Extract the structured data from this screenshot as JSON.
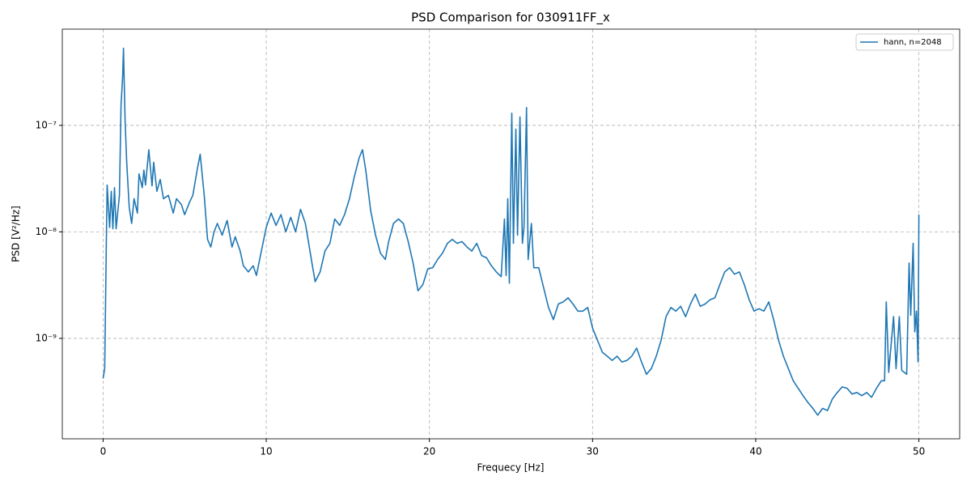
{
  "chart_data": {
    "type": "line",
    "title": "PSD Comparison for 030911FF_x",
    "x_label": "Frequecy [Hz]",
    "y_label": "PSD [V²/Hz]",
    "x": [
      0,
      0.1,
      0.2,
      0.25,
      0.4,
      0.5,
      0.6,
      0.7,
      0.8,
      1.0,
      1.1,
      1.2,
      1.25,
      1.35,
      1.45,
      1.6,
      1.75,
      1.9,
      2.1,
      2.2,
      2.4,
      2.5,
      2.6,
      2.8,
      3.0,
      3.1,
      3.3,
      3.5,
      3.7,
      4.0,
      4.3,
      4.5,
      4.8,
      5.0,
      5.3,
      5.5,
      5.8,
      5.95,
      6.2,
      6.4,
      6.6,
      6.8,
      7.0,
      7.3,
      7.6,
      7.9,
      8.1,
      8.4,
      8.6,
      8.9,
      9.2,
      9.4,
      9.7,
      10.0,
      10.3,
      10.6,
      10.9,
      11.2,
      11.5,
      11.8,
      12.1,
      12.4,
      12.6,
      12.8,
      13.0,
      13.3,
      13.6,
      13.9,
      14.2,
      14.5,
      14.8,
      15.1,
      15.4,
      15.7,
      15.9,
      16.1,
      16.4,
      16.7,
      17.0,
      17.3,
      17.5,
      17.8,
      18.1,
      18.4,
      18.7,
      19.0,
      19.3,
      19.6,
      19.9,
      20.2,
      20.5,
      20.8,
      21.1,
      21.4,
      21.7,
      22.0,
      22.3,
      22.6,
      22.9,
      23.2,
      23.5,
      23.8,
      24.1,
      24.4,
      24.6,
      24.7,
      24.8,
      24.9,
      25.05,
      25.15,
      25.3,
      25.4,
      25.55,
      25.7,
      25.8,
      25.95,
      26.05,
      26.25,
      26.4,
      26.7,
      27.0,
      27.3,
      27.6,
      27.9,
      28.2,
      28.5,
      28.8,
      29.1,
      29.4,
      29.7,
      30.0,
      30.3,
      30.6,
      30.9,
      31.2,
      31.5,
      31.8,
      32.1,
      32.4,
      32.7,
      33.0,
      33.3,
      33.6,
      33.9,
      34.2,
      34.5,
      34.8,
      35.1,
      35.4,
      35.7,
      36.0,
      36.3,
      36.6,
      36.9,
      37.2,
      37.5,
      37.8,
      38.1,
      38.4,
      38.7,
      39.0,
      39.3,
      39.6,
      39.9,
      40.2,
      40.5,
      40.8,
      41.1,
      41.4,
      41.7,
      42.0,
      42.3,
      42.6,
      42.9,
      43.2,
      43.5,
      43.8,
      44.1,
      44.4,
      44.7,
      45.0,
      45.3,
      45.6,
      45.9,
      46.2,
      46.5,
      46.8,
      47.1,
      47.4,
      47.7,
      47.9,
      48.0,
      48.15,
      48.45,
      48.6,
      48.8,
      48.95,
      49.25,
      49.4,
      49.5,
      49.65,
      49.75,
      49.85,
      49.95,
      50.0
    ],
    "series": [
      {
        "name": "hann, n=2048",
        "color": "#1f77b4",
        "values": [
          4.2e-10,
          5.2e-10,
          7.8e-09,
          2.75e-08,
          1.1e-08,
          2.4e-08,
          1.07e-08,
          2.6e-08,
          1.07e-08,
          2.2e-08,
          1.55e-07,
          2.9e-07,
          5.3e-07,
          1.1e-07,
          4.5e-08,
          1.7e-08,
          1.2e-08,
          2.05e-08,
          1.5e-08,
          3.5e-08,
          2.6e-08,
          3.8e-08,
          2.75e-08,
          5.9e-08,
          2.7e-08,
          4.5e-08,
          2.4e-08,
          3.1e-08,
          2.05e-08,
          2.2e-08,
          1.5e-08,
          2.05e-08,
          1.8e-08,
          1.45e-08,
          1.9e-08,
          2.2e-08,
          4.1e-08,
          5.35e-08,
          2.2e-08,
          8.5e-09,
          7.2e-09,
          1e-08,
          1.2e-08,
          9.3e-09,
          1.28e-08,
          7.2e-09,
          9e-09,
          6.6e-09,
          4.8e-09,
          4.2e-09,
          4.8e-09,
          3.9e-09,
          6.6e-09,
          1.1e-08,
          1.5e-08,
          1.15e-08,
          1.45e-08,
          1e-08,
          1.37e-08,
          1e-08,
          1.63e-08,
          1.2e-08,
          7.8e-09,
          5.1e-09,
          3.4e-09,
          4.2e-09,
          6.6e-09,
          7.8e-09,
          1.32e-08,
          1.15e-08,
          1.45e-08,
          2.05e-08,
          3.3e-08,
          5e-08,
          5.9e-08,
          3.8e-08,
          1.58e-08,
          9.3e-09,
          6.3e-09,
          5.5e-09,
          8.1e-09,
          1.2e-08,
          1.32e-08,
          1.2e-08,
          8.1e-09,
          5.1e-09,
          2.8e-09,
          3.2e-09,
          4.5e-09,
          4.6e-09,
          5.5e-09,
          6.3e-09,
          7.8e-09,
          8.5e-09,
          7.8e-09,
          8.1e-09,
          7.2e-09,
          6.6e-09,
          7.8e-09,
          6e-09,
          5.7e-09,
          4.8e-09,
          4.2e-09,
          3.8e-09,
          1.32e-08,
          3.9e-09,
          2.05e-08,
          3.3e-09,
          1.3e-07,
          7.8e-09,
          9.2e-08,
          9.3e-09,
          1.2e-07,
          7.8e-09,
          1.1e-08,
          1.47e-07,
          5.5e-09,
          1.2e-08,
          4.6e-09,
          4.6e-09,
          3e-09,
          1.95e-09,
          1.5e-09,
          2.1e-09,
          2.2e-09,
          2.4e-09,
          2.1e-09,
          1.8e-09,
          1.8e-09,
          1.95e-09,
          1.25e-09,
          9.6e-10,
          7.4e-10,
          6.8e-10,
          6.2e-10,
          6.8e-10,
          6e-10,
          6.2e-10,
          6.8e-10,
          8.1e-10,
          6e-10,
          4.6e-10,
          5.2e-10,
          6.8e-10,
          9.6e-10,
          1.6e-09,
          1.95e-09,
          1.8e-09,
          2e-09,
          1.6e-09,
          2.1e-09,
          2.6e-09,
          2e-09,
          2.1e-09,
          2.3e-09,
          2.4e-09,
          3.2e-09,
          4.2e-09,
          4.6e-09,
          4e-09,
          4.2e-09,
          3.2e-09,
          2.3e-09,
          1.8e-09,
          1.9e-09,
          1.8e-09,
          2.2e-09,
          1.5e-09,
          9.6e-10,
          6.8e-10,
          5.2e-10,
          4e-10,
          3.4e-10,
          2.9e-10,
          2.5e-10,
          2.2e-10,
          1.9e-10,
          2.2e-10,
          2.1e-10,
          2.7e-10,
          3.1e-10,
          3.5e-10,
          3.4e-10,
          3e-10,
          3.1e-10,
          2.9e-10,
          3.1e-10,
          2.8e-10,
          3.4e-10,
          4e-10,
          4e-10,
          2.2e-09,
          4.8e-10,
          1.6e-09,
          5.2e-10,
          1.6e-09,
          5e-10,
          4.6e-10,
          5.1e-09,
          1.65e-09,
          7.8e-09,
          1.15e-09,
          1.8e-09,
          6e-10,
          1.45e-08
        ]
      }
    ],
    "xlim": [
      -2.5,
      52.5
    ],
    "xticks": [
      0,
      10,
      20,
      30,
      40,
      50
    ],
    "ylim": [
      1.14e-10,
      8e-07
    ],
    "yscale": "log",
    "yticks": [
      {
        "value": 1e-09,
        "label": "10⁻⁹"
      },
      {
        "value": 1e-08,
        "label": "10⁻⁸"
      },
      {
        "value": 1e-07,
        "label": "10⁻⁷"
      }
    ],
    "grid": true,
    "legend": "upper right"
  }
}
